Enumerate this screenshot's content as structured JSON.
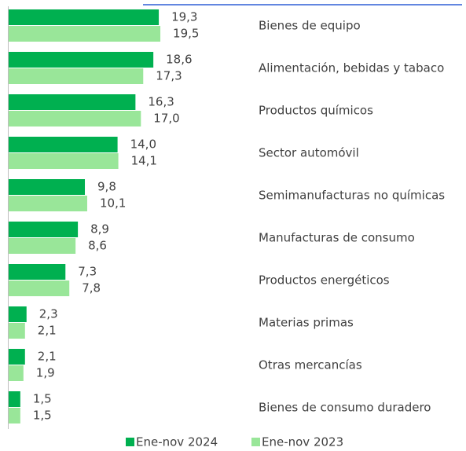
{
  "chart_data": {
    "type": "bar",
    "orientation": "horizontal",
    "categories": [
      "Bienes de equipo",
      "Alimentación, bebidas y tabaco",
      "Productos químicos",
      "Sector automóvil",
      "Semimanufacturas no químicas",
      "Manufacturas de consumo",
      "Productos energéticos",
      "Materias primas",
      "Otras mercancías",
      "Bienes de consumo duradero"
    ],
    "series": [
      {
        "name": "Ene-nov 2024",
        "color": "#00b050",
        "values": [
          19.3,
          18.6,
          16.3,
          14.0,
          9.8,
          8.9,
          7.3,
          2.3,
          2.1,
          1.5
        ],
        "value_labels": [
          "19,3",
          "18,6",
          "16,3",
          "14,0",
          "9,8",
          "8,9",
          "7,3",
          "2,3",
          "2,1",
          "1,5"
        ]
      },
      {
        "name": "Ene-nov 2023",
        "color": "#99e699",
        "values": [
          19.5,
          17.3,
          17.0,
          14.1,
          10.1,
          8.6,
          7.8,
          2.1,
          1.9,
          1.5
        ],
        "value_labels": [
          "19,5",
          "17,3",
          "17,0",
          "14,1",
          "10,1",
          "8,6",
          "7,8",
          "2,1",
          "1,9",
          "1,5"
        ]
      }
    ],
    "xlim": [
      0,
      20
    ],
    "legend": "bottom"
  }
}
